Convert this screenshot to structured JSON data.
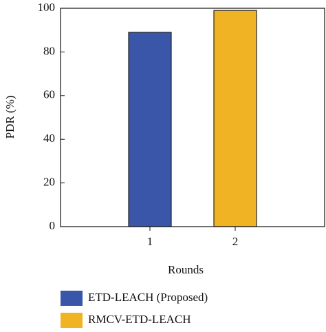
{
  "chart_data": {
    "type": "bar",
    "xlabel": "Rounds",
    "ylabel": "PDR (%)",
    "series": [
      {
        "name": "ETD-LEACH (Proposed)",
        "color": "#3a56a8",
        "x": [
          1
        ],
        "values": [
          89
        ]
      },
      {
        "name": "RMCV-ETD-LEACH",
        "color": "#f0b323",
        "x": [
          2
        ],
        "values": [
          99
        ]
      }
    ],
    "xlim": [
      0,
      3
    ],
    "xticks": [
      1,
      2
    ],
    "ylim": [
      0,
      100
    ],
    "yticks": [
      0,
      20,
      40,
      60,
      80,
      100
    ],
    "grid": false,
    "legend": "bottom"
  }
}
